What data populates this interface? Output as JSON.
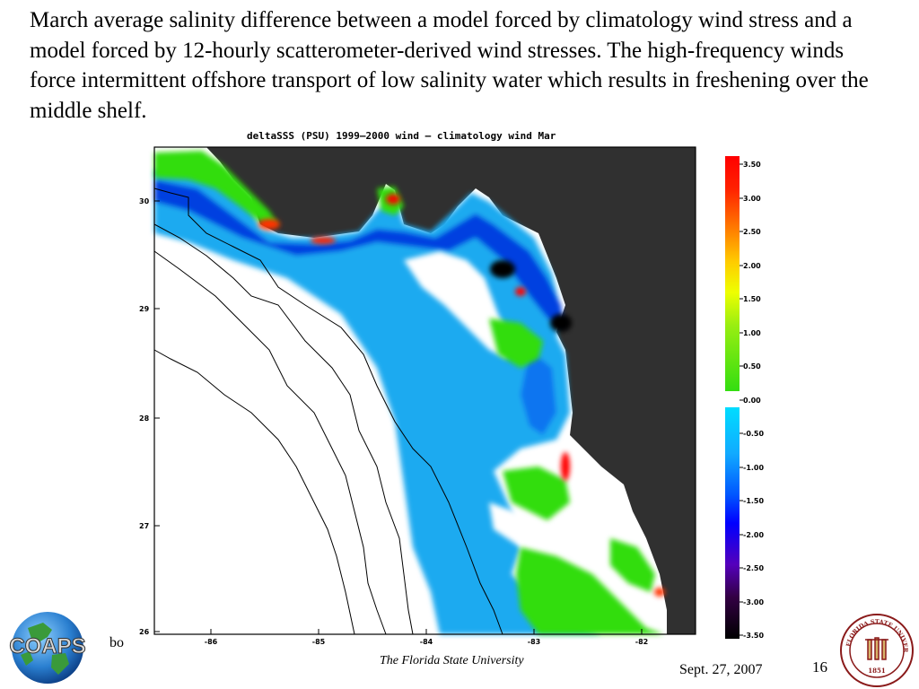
{
  "caption": "March average salinity difference between a model forced by climatology wind stress and a model forced by 12-hourly scatterometer-derived wind stresses. The high-frequency winds force intermittent offshore transport of low salinity water which results in freshening over the middle shelf.",
  "map": {
    "title": "deltaSSS (PSU) 1999–2000 wind – climatology wind Mar",
    "y_ticks": [
      "30",
      "29",
      "28",
      "27",
      "26"
    ],
    "x_ticks": [
      "-86",
      "-85",
      "-84",
      "-83",
      "-82"
    ]
  },
  "colorbar": {
    "labels": [
      "3.50",
      "3.00",
      "2.50",
      "2.00",
      "1.50",
      "1.00",
      "0.50",
      "0.00",
      "-0.50",
      "-1.00",
      "-1.50",
      "-2.00",
      "-2.50",
      "-3.00",
      "-3.50"
    ],
    "colors": {
      "high": "#ff0000",
      "mid_high": "#ffee00",
      "low_pos": "#33dd11",
      "zero": "#ffffff",
      "low_neg": "#00ddff",
      "mid_neg": "#0000ff",
      "high_neg": "#000000"
    }
  },
  "colors": {
    "land": "#303030",
    "background": "#ffffff"
  },
  "footer": {
    "fragment": "bo",
    "university": "The Florida State University",
    "date": "Sept. 27, 2007",
    "page": "16"
  },
  "logos": {
    "coaps": "COAPS",
    "fsu_text": "FLORIDA STATE UNIVERSITY",
    "fsu_year": "1851"
  }
}
